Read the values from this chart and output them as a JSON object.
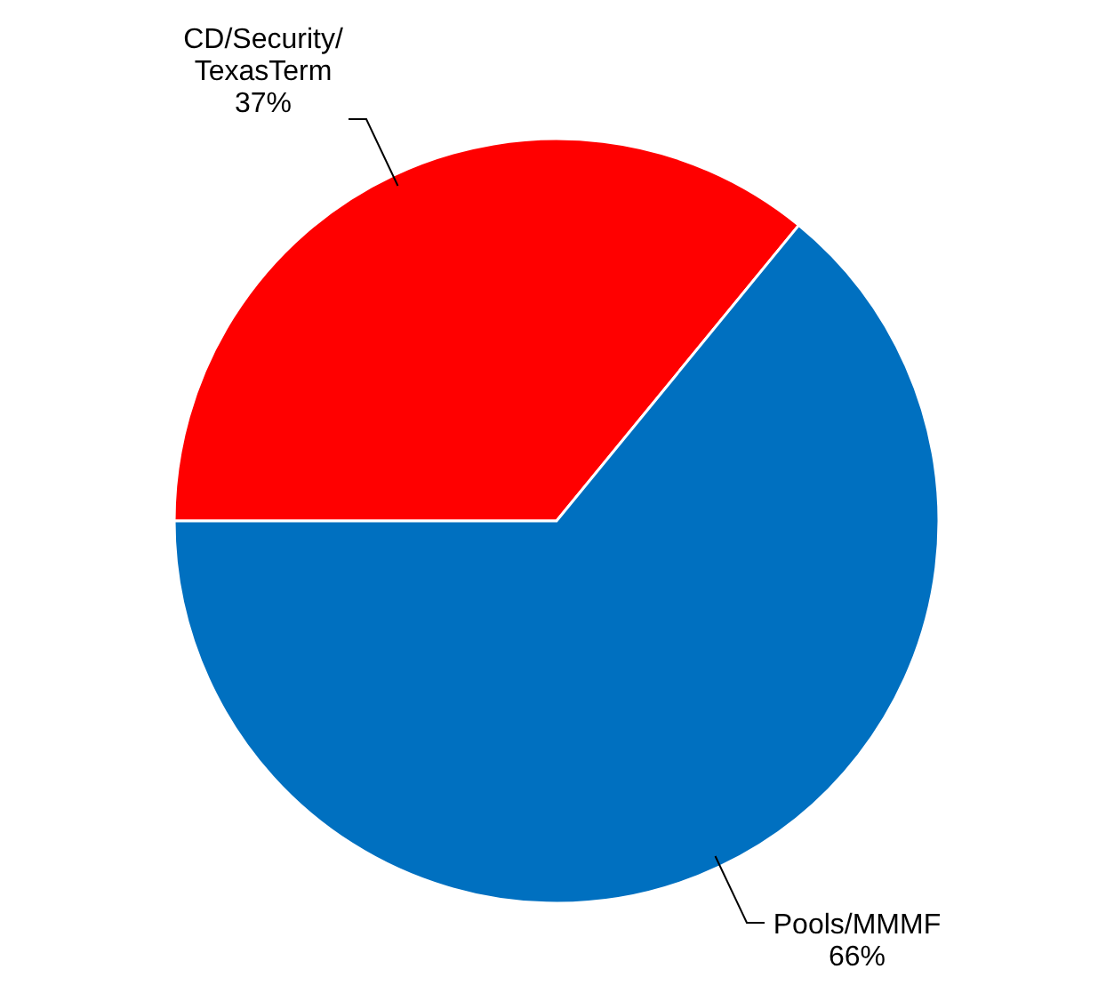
{
  "chart_data": {
    "type": "pie",
    "categories": [
      "CD/Security/\nTexasTerm",
      "Pools/MMMF"
    ],
    "values": [
      37,
      66
    ],
    "colors": [
      "#ff0000",
      "#0070c0"
    ],
    "value_labels": [
      "37%",
      "66%"
    ]
  }
}
